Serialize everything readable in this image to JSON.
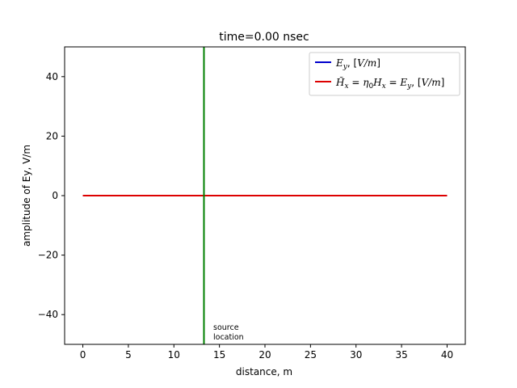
{
  "chart_data": {
    "type": "line",
    "title": "time=0.00 nsec",
    "xlabel": "distance, m",
    "ylabel": "amplitude of Ey, V/m",
    "xlim": [
      -2,
      42
    ],
    "ylim": [
      -50,
      50
    ],
    "xticks": [
      0,
      5,
      10,
      15,
      20,
      25,
      30,
      35,
      40
    ],
    "yticks": [
      -40,
      -20,
      0,
      20,
      40
    ],
    "xtick_labels": [
      "0",
      "5",
      "10",
      "15",
      "20",
      "25",
      "30",
      "35",
      "40"
    ],
    "ytick_labels": [
      "−40",
      "−20",
      "0",
      "20",
      "40"
    ],
    "grid": false,
    "legend": "top-right",
    "series": [
      {
        "name": "Ey, [V/m]",
        "color": "#0000cc",
        "x": [
          0,
          40
        ],
        "y": [
          0,
          0
        ]
      },
      {
        "name": "H̃x = η0Hx = Ey, [V/m]",
        "color": "#dd0000",
        "x": [
          0,
          40
        ],
        "y": [
          0,
          0
        ]
      }
    ],
    "source": {
      "x": 13.3,
      "color": "#008000",
      "label_line1": "source",
      "label_line2": "location"
    }
  }
}
